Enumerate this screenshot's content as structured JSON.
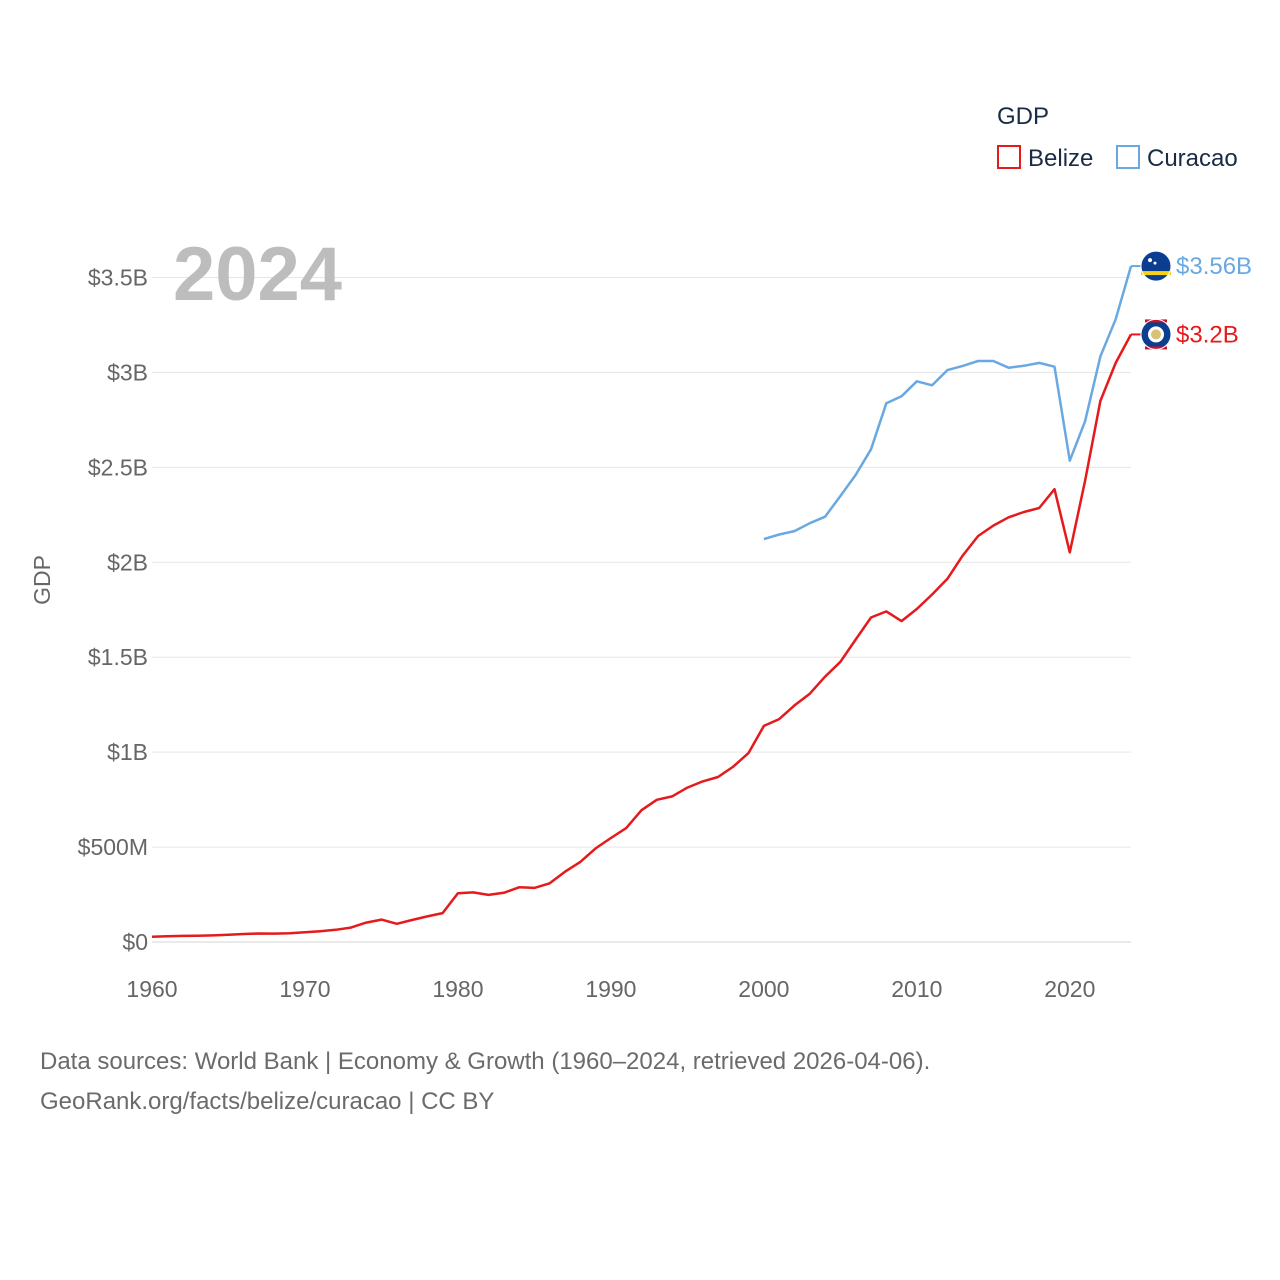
{
  "chart_data": {
    "type": "line",
    "title": "",
    "year_label": "2024",
    "xlabel": "",
    "ylabel": "GDP",
    "xlim": [
      1960,
      2024
    ],
    "ylim": [
      0,
      3750000000
    ],
    "x_ticks": [
      {
        "value": 1960,
        "label": "1960"
      },
      {
        "value": 1970,
        "label": "1970"
      },
      {
        "value": 1980,
        "label": "1980"
      },
      {
        "value": 1990,
        "label": "1990"
      },
      {
        "value": 2000,
        "label": "2000"
      },
      {
        "value": 2010,
        "label": "2010"
      },
      {
        "value": 2020,
        "label": "2020"
      }
    ],
    "y_ticks": [
      {
        "value": 0,
        "label": "$0"
      },
      {
        "value": 500000000,
        "label": "$500M"
      },
      {
        "value": 1000000000,
        "label": "$1B"
      },
      {
        "value": 1500000000,
        "label": "$1.5B"
      },
      {
        "value": 2000000000,
        "label": "$2B"
      },
      {
        "value": 2500000000,
        "label": "$2.5B"
      },
      {
        "value": 3000000000,
        "label": "$3B"
      },
      {
        "value": 3500000000,
        "label": "$3.5B"
      }
    ],
    "grid": true,
    "legend": {
      "title": "GDP",
      "position": "top-right"
    },
    "series": [
      {
        "name": "Belize",
        "color": "#e41a1c",
        "end_label": "$3.2B",
        "flag_icon": "belize-flag-icon",
        "x": [
          1960,
          1961,
          1962,
          1963,
          1964,
          1965,
          1966,
          1967,
          1968,
          1969,
          1970,
          1971,
          1972,
          1973,
          1974,
          1975,
          1976,
          1977,
          1978,
          1979,
          1980,
          1981,
          1982,
          1983,
          1984,
          1985,
          1986,
          1987,
          1988,
          1989,
          1990,
          1991,
          1992,
          1993,
          1994,
          1995,
          1996,
          1997,
          1998,
          1999,
          2000,
          2001,
          2002,
          2003,
          2004,
          2005,
          2006,
          2007,
          2008,
          2009,
          2010,
          2011,
          2012,
          2013,
          2014,
          2015,
          2016,
          2017,
          2018,
          2019,
          2020,
          2021,
          2022,
          2023,
          2024
        ],
        "values": [
          28000000,
          30000000,
          32000000,
          33000000,
          35000000,
          38000000,
          42000000,
          45000000,
          44000000,
          46000000,
          51000000,
          57000000,
          64000000,
          76000000,
          102000000,
          118000000,
          96000000,
          116000000,
          135000000,
          152000000,
          257000000,
          261000000,
          248000000,
          259000000,
          288000000,
          285000000,
          309000000,
          370000000,
          422000000,
          493000000,
          548000000,
          600000000,
          694000000,
          749000000,
          767000000,
          813000000,
          846000000,
          869000000,
          924000000,
          996000000,
          1138000000,
          1174000000,
          1246000000,
          1308000000,
          1398000000,
          1476000000,
          1593000000,
          1709000000,
          1741000000,
          1690000000,
          1754000000,
          1830000000,
          1913000000,
          2035000000,
          2138000000,
          2193000000,
          2237000000,
          2265000000,
          2286000000,
          2385000000,
          2052000000,
          2430000000,
          2850000000,
          3050000000,
          3200000000
        ]
      },
      {
        "name": "Curacao",
        "color": "#6aa8e2",
        "end_label": "$3.56B",
        "flag_icon": "curacao-flag-icon",
        "x": [
          2000,
          2001,
          2002,
          2003,
          2004,
          2005,
          2006,
          2007,
          2008,
          2009,
          2010,
          2011,
          2012,
          2013,
          2014,
          2015,
          2016,
          2017,
          2018,
          2019,
          2020,
          2021,
          2022,
          2023,
          2024
        ],
        "values": [
          2122000000,
          2146000000,
          2164000000,
          2206000000,
          2240000000,
          2349000000,
          2460000000,
          2595000000,
          2837000000,
          2874000000,
          2953000000,
          2932000000,
          3012000000,
          3034000000,
          3060000000,
          3060000000,
          3025000000,
          3035000000,
          3050000000,
          3030000000,
          2535000000,
          2743000000,
          3085000000,
          3280000000,
          3560000000
        ]
      }
    ]
  },
  "footer": {
    "line1": "Data sources: World Bank | Economy & Growth (1960–2024, retrieved 2026-04-06).",
    "line2": "GeoRank.org/facts/belize/curacao | CC BY"
  }
}
